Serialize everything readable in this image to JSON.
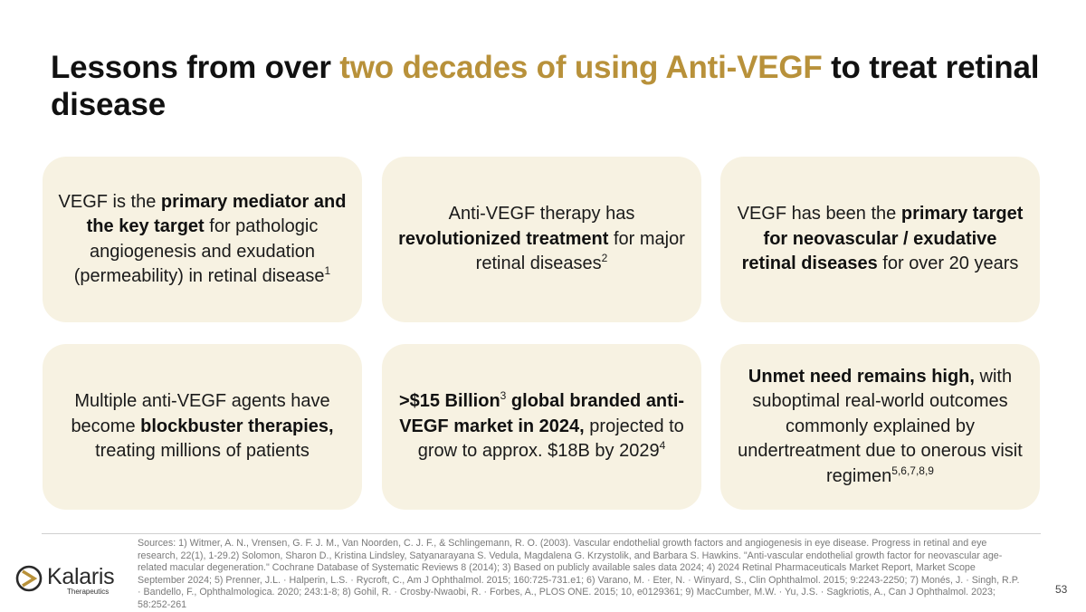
{
  "title": {
    "pre": "Lessons from over ",
    "accent": "two decades of using Anti-VEGF",
    "post": " to treat retinal disease"
  },
  "cards": [
    {
      "t1": "VEGF is the ",
      "b1": "primary mediator and the key target",
      "t2": " for pathologic angiogenesis and exudation (permeability) in retinal disease",
      "sup": "1"
    },
    {
      "t1": "Anti-VEGF therapy has ",
      "b1": "revolutionized treatment",
      "t2": " for major retinal diseases",
      "sup": "2"
    },
    {
      "t1": "VEGF has been the ",
      "b1": "primary target for neovascular / exudative retinal diseases",
      "t2": " for over 20 years"
    },
    {
      "t1": "Multiple anti-VEGF agents have become ",
      "b1": "blockbuster therapies,",
      "t2": " treating millions of patients"
    },
    {
      "b1": ">$15 Billion",
      "sup1": "3",
      "b2": " global branded anti-VEGF market in 2024,",
      "t1": " projected to grow to approx. $18B by 2029",
      "sup2": "4"
    },
    {
      "b1": "Unmet need remains high,",
      "t1": " with suboptimal real-world outcomes commonly explained by undertreatment due to onerous visit regimen",
      "sup": "5,6,7,8,9"
    }
  ],
  "sources": "Sources: 1) Witmer, A. N., Vrensen, G. F. J. M., Van Noorden, C. J. F., & Schlingemann, R. O. (2003). Vascular endothelial growth factors and angiogenesis in eye disease. Progress in retinal and eye research, 22(1), 1-29.2) Solomon, Sharon D., Kristina Lindsley, Satyanarayana S. Vedula, Magdalena G. Krzystolik, and Barbara S. Hawkins. \"Anti-vascular endothelial growth factor for neovascular age-related macular degeneration.\" Cochrane Database of Systematic Reviews 8 (2014); 3) Based on publicly available sales data 2024; 4) 2024 Retinal Pharmaceuticals Market Report, Market Scope September 2024; 5) Prenner, J.L. · Halperin, L.S. · Rycroft, C., Am J Ophthalmol. 2015; 160:725-731.e1; 6) Varano, M. · Eter, N. · Winyard, S., Clin Ophthalmol. 2015; 9:2243-2250; 7) Monés, J. · Singh, R.P. · Bandello, F., Ophthalmologica. 2020; 243:1-8; 8) Gohil, R. · Crosby-Nwaobi, R. · Forbes, A., PLOS ONE. 2015; 10, e0129361; 9) MacCumber, M.W. · Yu, J.S. · Sagkriotis, A., Can J Ophthalmol. 2023; 58:252-261",
  "logo": {
    "name": "Kalaris",
    "sub": "Therapeutics",
    "icon": "kalaris-logo-mark"
  },
  "page_number": "53",
  "colors": {
    "accent": "#B8913A",
    "card_bg": "#F7F2E2",
    "text": "#111111",
    "muted": "#7a7a7a"
  }
}
